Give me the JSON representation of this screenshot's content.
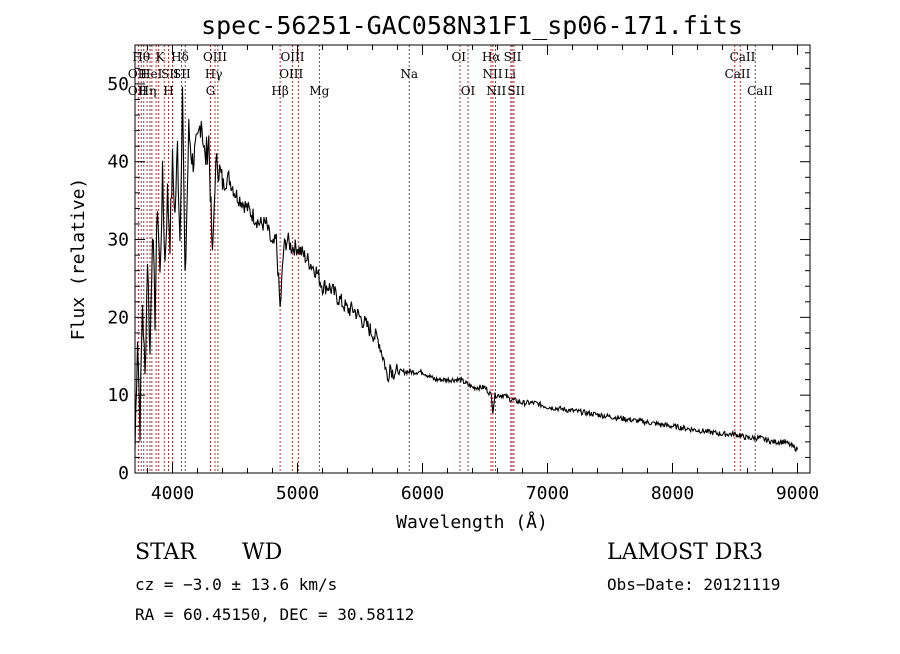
{
  "chart_data": {
    "type": "line",
    "title": "spec-56251-GAC058N31F1_sp06-171.fits",
    "xlabel": "Wavelength (Å)",
    "ylabel": "Flux (relative)",
    "xlim": [
      3700,
      9100
    ],
    "ylim": [
      0,
      55
    ],
    "xticks": [
      4000,
      5000,
      6000,
      7000,
      8000,
      9000
    ],
    "yticks": [
      0,
      10,
      20,
      30,
      40,
      50
    ],
    "series": [
      {
        "name": "flux",
        "x": [
          3700,
          3720,
          3740,
          3760,
          3780,
          3800,
          3820,
          3840,
          3860,
          3880,
          3900,
          3920,
          3940,
          3960,
          3980,
          4000,
          4020,
          4040,
          4060,
          4080,
          4100,
          4130,
          4160,
          4200,
          4230,
          4260,
          4290,
          4320,
          4340,
          4360,
          4400,
          4450,
          4500,
          4550,
          4600,
          4650,
          4700,
          4750,
          4800,
          4830,
          4861,
          4890,
          4920,
          4950,
          5000,
          5050,
          5100,
          5150,
          5200,
          5250,
          5300,
          5350,
          5400,
          5450,
          5500,
          5550,
          5600,
          5650,
          5700,
          5720,
          5740,
          5760,
          5800,
          5850,
          5900,
          5950,
          6000,
          6100,
          6200,
          6300,
          6400,
          6500,
          6550,
          6563,
          6580,
          6650,
          6700,
          6800,
          6900,
          7000,
          7200,
          7400,
          7600,
          7800,
          8000,
          8200,
          8400,
          8500,
          8600,
          8700,
          8800,
          8900,
          8950,
          9000
        ],
        "y": [
          3,
          18,
          6,
          22,
          12,
          28,
          15,
          32,
          20,
          35,
          25,
          38,
          27,
          36,
          30,
          40,
          33,
          42,
          30,
          50,
          24,
          44,
          40,
          42,
          46,
          40,
          43,
          27,
          38,
          40,
          37,
          38,
          36,
          35,
          34,
          33,
          32,
          32,
          29,
          30,
          21,
          29,
          30,
          29,
          29,
          28,
          27,
          26,
          24,
          24,
          23,
          22,
          21,
          21,
          20,
          19,
          18,
          17,
          14,
          12,
          14,
          13,
          13,
          13,
          13,
          13,
          13,
          12,
          12,
          12,
          11,
          11,
          10,
          8,
          10,
          10,
          9.5,
          9,
          9,
          8.5,
          8,
          7.5,
          7,
          6.5,
          6,
          5.5,
          5,
          5,
          4.5,
          4.5,
          4,
          4,
          3.5,
          3
        ]
      }
    ],
    "lines": [
      {
        "wave": 3727,
        "labels": [
          "OII"
        ]
      },
      {
        "wave": 3750,
        "labels": [
          "Hθ"
        ]
      },
      {
        "wave": 3770,
        "labels": [
          "Hη"
        ]
      },
      {
        "wave": 3797,
        "labels": [
          "Hθ"
        ]
      },
      {
        "wave": 3820,
        "labels": [
          "HeI"
        ]
      },
      {
        "wave": 3835,
        "labels": [
          "Hη"
        ]
      },
      {
        "wave": 3869,
        "labels": [
          "K"
        ]
      },
      {
        "wave": 3889,
        "labels": [
          "HeI"
        ]
      },
      {
        "wave": 3934,
        "labels": [
          "K"
        ]
      },
      {
        "wave": 3968,
        "labels": [
          "H"
        ]
      },
      {
        "wave": 4000,
        "labels": [
          "SII"
        ]
      },
      {
        "wave": 4072,
        "labels": [
          "SII"
        ]
      },
      {
        "wave": 4102,
        "labels": [
          "Hδ"
        ]
      },
      {
        "wave": 4304,
        "labels": [
          "G"
        ]
      },
      {
        "wave": 4340,
        "labels": [
          "Hγ"
        ]
      },
      {
        "wave": 4363,
        "labels": [
          "OIII"
        ]
      },
      {
        "wave": 4861,
        "labels": [
          "Hβ"
        ]
      },
      {
        "wave": 4959,
        "labels": [
          "OIII"
        ]
      },
      {
        "wave": 5007,
        "labels": [
          "OIII"
        ]
      },
      {
        "wave": 5175,
        "labels": [
          "Mg"
        ]
      },
      {
        "wave": 5894,
        "labels": [
          "Na"
        ]
      },
      {
        "wave": 6300,
        "labels": [
          "OI"
        ]
      },
      {
        "wave": 6364,
        "labels": [
          "OI"
        ]
      },
      {
        "wave": 6548,
        "labels": [
          "NII"
        ]
      },
      {
        "wave": 6563,
        "labels": [
          "Hα"
        ]
      },
      {
        "wave": 6584,
        "labels": [
          "NII"
        ]
      },
      {
        "wave": 6707,
        "labels": [
          "Li"
        ]
      },
      {
        "wave": 6717,
        "labels": [
          "SII"
        ]
      },
      {
        "wave": 6731,
        "labels": [
          "SII"
        ]
      },
      {
        "wave": 8498,
        "labels": [
          "CaII"
        ]
      },
      {
        "wave": 8542,
        "labels": [
          "CaII"
        ]
      },
      {
        "wave": 8662,
        "labels": [
          "CaII"
        ]
      }
    ],
    "line_labels": [
      {
        "text": "Hθ",
        "wave": 3750,
        "row": 0
      },
      {
        "text": "K",
        "wave": 3900,
        "row": 0
      },
      {
        "text": "Hδ",
        "wave": 4060,
        "row": 0
      },
      {
        "text": "OIII",
        "wave": 4340,
        "row": 0
      },
      {
        "text": "OIII",
        "wave": 4960,
        "row": 0
      },
      {
        "text": "OI",
        "wave": 6290,
        "row": 0
      },
      {
        "text": "Hα",
        "wave": 6550,
        "row": 0
      },
      {
        "text": "SII",
        "wave": 6720,
        "row": 0
      },
      {
        "text": "CaII",
        "wave": 8560,
        "row": 0
      },
      {
        "text": "OII",
        "wave": 3720,
        "row": 1
      },
      {
        "text": "HeI",
        "wave": 3830,
        "row": 1
      },
      {
        "text": "SII",
        "wave": 3980,
        "row": 1
      },
      {
        "text": "SII",
        "wave": 4075,
        "row": 1
      },
      {
        "text": "Hγ",
        "wave": 4330,
        "row": 1
      },
      {
        "text": "OIII",
        "wave": 4950,
        "row": 1
      },
      {
        "text": "Na",
        "wave": 5894,
        "row": 1
      },
      {
        "text": "NII",
        "wave": 6560,
        "row": 1
      },
      {
        "text": "Li",
        "wave": 6700,
        "row": 1
      },
      {
        "text": "CaII",
        "wave": 8520,
        "row": 1
      },
      {
        "text": "OII",
        "wave": 3720,
        "row": 2
      },
      {
        "text": "Hη",
        "wave": 3800,
        "row": 2
      },
      {
        "text": "H",
        "wave": 3968,
        "row": 2
      },
      {
        "text": "G",
        "wave": 4304,
        "row": 2
      },
      {
        "text": "Hβ",
        "wave": 4861,
        "row": 2
      },
      {
        "text": "Mg",
        "wave": 5175,
        "row": 2
      },
      {
        "text": "OI",
        "wave": 6364,
        "row": 2
      },
      {
        "text": "NII",
        "wave": 6590,
        "row": 2
      },
      {
        "text": "SII",
        "wave": 6750,
        "row": 2
      },
      {
        "text": "CaII",
        "wave": 8700,
        "row": 2
      }
    ],
    "grid": false,
    "legend": "none"
  },
  "info": {
    "object_class": "STAR",
    "subclass": "WD",
    "survey": "LAMOST DR3",
    "cz": "cz = −3.0 ± 13.6 km/s",
    "obs_date": "Obs−Date: 20121119",
    "coords": "RA =  60.45150, DEC =  30.58112"
  },
  "colors": {
    "spectrum": "#000000",
    "line_markers": "#b03030",
    "axes": "#000000"
  }
}
